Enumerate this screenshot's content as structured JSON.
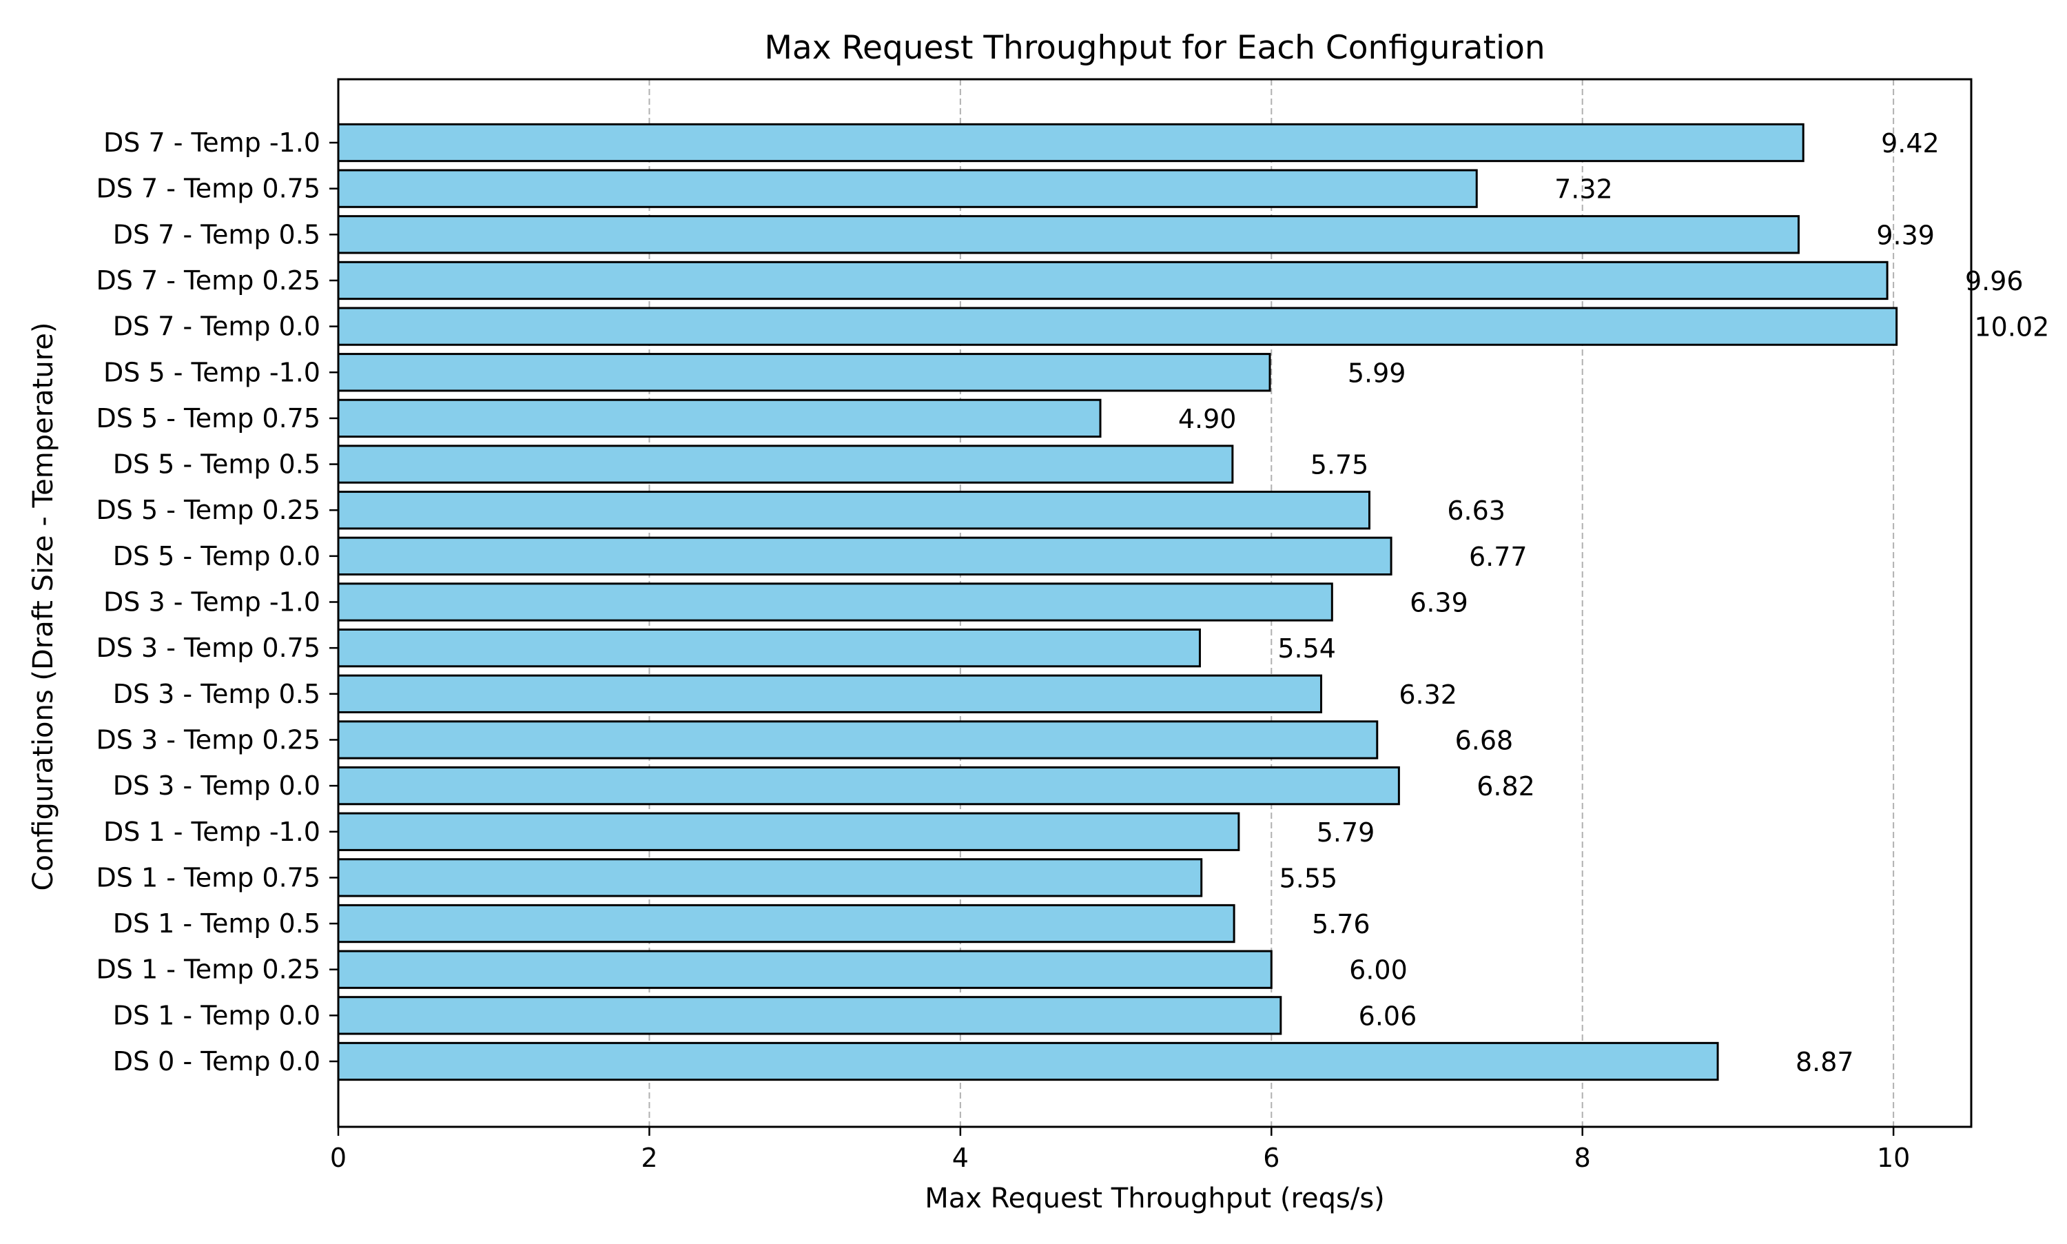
{
  "chart_data": {
    "type": "bar",
    "orientation": "horizontal",
    "title": "Max Request Throughput for Each Configuration",
    "xlabel": "Max Request Throughput (reqs/s)",
    "ylabel": "Configurations (Draft Size - Temperature)",
    "xlim": [
      0,
      10.5
    ],
    "xticks": [
      0,
      2,
      4,
      6,
      8,
      10
    ],
    "grid": "x-dashed",
    "categories": [
      "DS 0 - Temp 0.0",
      "DS 1 - Temp 0.0",
      "DS 1 - Temp 0.25",
      "DS 1 - Temp 0.5",
      "DS 1 - Temp 0.75",
      "DS 1 - Temp -1.0",
      "DS 3 - Temp 0.0",
      "DS 3 - Temp 0.25",
      "DS 3 - Temp 0.5",
      "DS 3 - Temp 0.75",
      "DS 3 - Temp -1.0",
      "DS 5 - Temp 0.0",
      "DS 5 - Temp 0.25",
      "DS 5 - Temp 0.5",
      "DS 5 - Temp 0.75",
      "DS 5 - Temp -1.0",
      "DS 7 - Temp 0.0",
      "DS 7 - Temp 0.25",
      "DS 7 - Temp 0.5",
      "DS 7 - Temp 0.75",
      "DS 7 - Temp -1.0"
    ],
    "values": [
      8.87,
      6.06,
      6.0,
      5.76,
      5.55,
      5.79,
      6.82,
      6.68,
      6.32,
      5.54,
      6.39,
      6.77,
      6.63,
      5.75,
      4.9,
      5.99,
      10.02,
      9.96,
      9.39,
      7.32,
      9.42
    ],
    "value_labels": [
      "8.87",
      "6.06",
      "6.00",
      "5.76",
      "5.55",
      "5.79",
      "6.82",
      "6.68",
      "6.32",
      "5.54",
      "6.39",
      "6.77",
      "6.63",
      "5.75",
      "4.90",
      "5.99",
      "10.02",
      "9.96",
      "9.39",
      "7.32",
      "9.42"
    ],
    "colors": {
      "bar_fill": "#87CEEB",
      "bar_edge": "#000000",
      "grid": "#b0b0b0"
    }
  }
}
